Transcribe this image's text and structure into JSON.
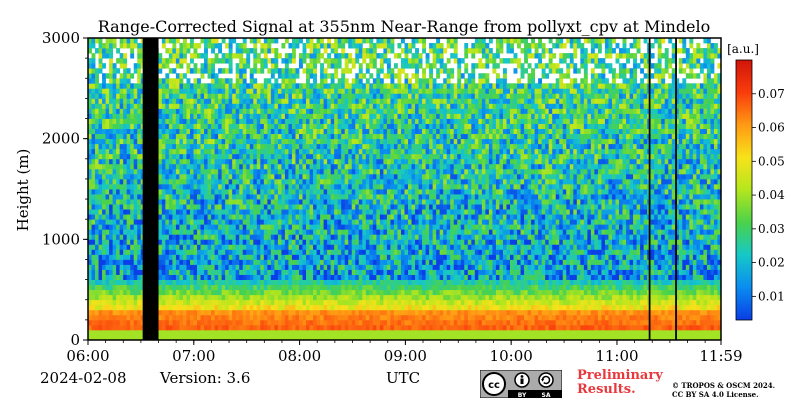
{
  "chart_data": {
    "type": "heatmap",
    "title": "Range-Corrected Signal at 355nm Near-Range from pollyxt_cpv at Mindelo",
    "ylabel": "Height (m)",
    "xlabel": "UTC",
    "x_ticks": [
      "06:00",
      "07:00",
      "08:00",
      "09:00",
      "10:00",
      "11:00",
      "11:59"
    ],
    "y_ticks": [
      "0",
      "1000",
      "2000",
      "3000"
    ],
    "xlim": [
      "06:00",
      "11:59"
    ],
    "ylim": [
      0,
      3000
    ],
    "colorbar": {
      "unit": "[a.u.]",
      "ticks": [
        "0.01",
        "0.02",
        "0.03",
        "0.04",
        "0.05",
        "0.06",
        "0.07"
      ],
      "range": [
        0.003,
        0.08
      ],
      "colormap": [
        "#0a3ee6",
        "#0a8cf0",
        "#16c8c8",
        "#4ad24a",
        "#b4e61e",
        "#f8e21a",
        "#ff9a14",
        "#fa3c0c",
        "#d2140a"
      ]
    },
    "features": {
      "no_data_gaps": [
        [
          "06:31",
          "06:40"
        ],
        [
          "11:18",
          "11:19"
        ],
        [
          "11:33",
          "11:34"
        ]
      ],
      "strong_signal_layer_top_m": 300,
      "strong_signal_value": 0.07,
      "noise_region_above_m": 600
    }
  },
  "footer": {
    "date": "2024-02-08",
    "version": "Version: 3.6",
    "xlabel": "UTC",
    "preliminary_line1": "Preliminary",
    "preliminary_line2": "Results.",
    "copyright_line1": "© TROPOS & OSCM 2024.",
    "copyright_line2": "CC BY SA 4.0 License."
  },
  "license_badge": {
    "cc": "cc",
    "by": "BY",
    "sa": "SA"
  }
}
